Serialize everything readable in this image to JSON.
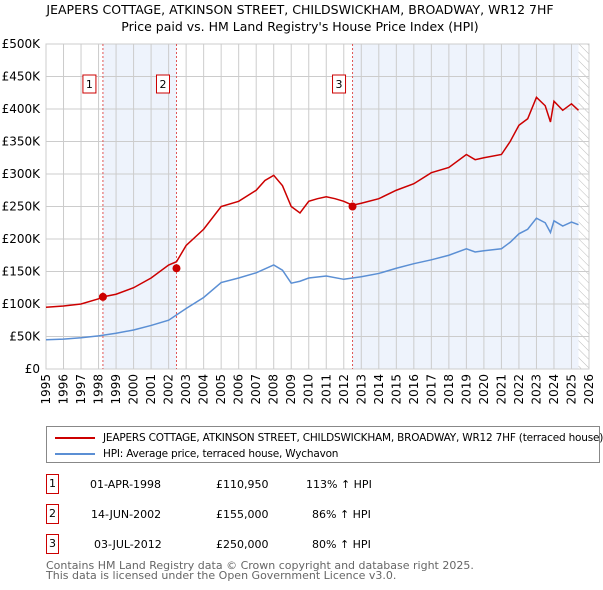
{
  "chart_data": {
    "type": "line",
    "title": "JEAPERS COTTAGE, ATKINSON STREET, CHILDSWICKHAM, BROADWAY, WR12 7HF",
    "subtitle": "Price paid vs. HM Land Registry's House Price Index (HPI)",
    "xlim": [
      1995,
      2026
    ],
    "ylim": [
      0,
      500000
    ],
    "x_ticks": [
      "1995",
      "1996",
      "1997",
      "1998",
      "1999",
      "2000",
      "2001",
      "2002",
      "2003",
      "2004",
      "2005",
      "2006",
      "2007",
      "2008",
      "2009",
      "2010",
      "2011",
      "2012",
      "2013",
      "2014",
      "2015",
      "2016",
      "2017",
      "2018",
      "2019",
      "2020",
      "2021",
      "2022",
      "2023",
      "2024",
      "2025",
      "2026"
    ],
    "y_ticks": [
      {
        "v": 0,
        "l": "£0"
      },
      {
        "v": 50000,
        "l": "£50K"
      },
      {
        "v": 100000,
        "l": "£100K"
      },
      {
        "v": 150000,
        "l": "£150K"
      },
      {
        "v": 200000,
        "l": "£200K"
      },
      {
        "v": 250000,
        "l": "£250K"
      },
      {
        "v": 300000,
        "l": "£300K"
      },
      {
        "v": 350000,
        "l": "£350K"
      },
      {
        "v": 400000,
        "l": "£400K"
      },
      {
        "v": 450000,
        "l": "£450K"
      },
      {
        "v": 500000,
        "l": "£500K"
      }
    ],
    "grid": true,
    "shaded_ranges": [
      [
        1998.25,
        2002.45
      ],
      [
        2012.5,
        2025.4
      ]
    ],
    "hatched_from": 2025.4,
    "series": [
      {
        "name": "JEAPERS COTTAGE, ATKINSON STREET, CHILDSWICKHAM, BROADWAY, WR12 7HF (terraced house)",
        "color": "#cc0000",
        "x": [
          1995,
          1996,
          1997,
          1998,
          1998.25,
          1999,
          2000,
          2001,
          2002,
          2002.45,
          2003,
          2004,
          2005,
          2006,
          2007,
          2007.5,
          2008,
          2008.5,
          2009,
          2009.5,
          2010,
          2010.5,
          2011,
          2011.5,
          2012,
          2012.5,
          2013,
          2014,
          2015,
          2016,
          2017,
          2018,
          2019,
          2019.5,
          2020,
          2021,
          2021.5,
          2022,
          2022.5,
          2023,
          2023.5,
          2023.8,
          2024,
          2024.5,
          2025,
          2025.4
        ],
        "y": [
          95000,
          97000,
          100000,
          108000,
          111000,
          115000,
          125000,
          140000,
          160000,
          165000,
          190000,
          215000,
          250000,
          258000,
          275000,
          290000,
          298000,
          282000,
          250000,
          240000,
          258000,
          262000,
          265000,
          262000,
          258000,
          252000,
          255000,
          262000,
          275000,
          285000,
          302000,
          310000,
          330000,
          322000,
          325000,
          330000,
          350000,
          375000,
          385000,
          418000,
          405000,
          380000,
          412000,
          398000,
          408000,
          398000
        ]
      },
      {
        "name": "HPI: Average price, terraced house, Wychavon",
        "color": "#5b8fd4",
        "x": [
          1995,
          1996,
          1997,
          1998,
          1999,
          2000,
          2001,
          2002,
          2003,
          2004,
          2005,
          2006,
          2007,
          2008,
          2008.5,
          2009,
          2009.5,
          2010,
          2011,
          2012,
          2013,
          2014,
          2015,
          2016,
          2017,
          2018,
          2019,
          2019.5,
          2020,
          2021,
          2021.5,
          2022,
          2022.5,
          2023,
          2023.5,
          2023.8,
          2024,
          2024.5,
          2025,
          2025.4
        ],
        "y": [
          45000,
          46000,
          48000,
          51000,
          55000,
          60000,
          67000,
          75000,
          93000,
          110000,
          133000,
          140000,
          148000,
          160000,
          152000,
          132000,
          135000,
          140000,
          143000,
          138000,
          142000,
          147000,
          155000,
          162000,
          168000,
          175000,
          185000,
          180000,
          182000,
          185000,
          195000,
          208000,
          215000,
          232000,
          225000,
          210000,
          228000,
          220000,
          226000,
          222000
        ]
      }
    ],
    "sales": [
      {
        "n": "1",
        "x": 1998.25,
        "y": 110950
      },
      {
        "n": "2",
        "x": 2002.45,
        "y": 155000
      },
      {
        "n": "3",
        "x": 2012.5,
        "y": 250000
      }
    ]
  },
  "title": "JEAPERS COTTAGE, ATKINSON STREET, CHILDSWICKHAM, BROADWAY, WR12 7HF",
  "subtitle": "Price paid vs. HM Land Registry's House Price Index (HPI)",
  "legend": {
    "red": "JEAPERS COTTAGE, ATKINSON STREET, CHILDSWICKHAM, BROADWAY, WR12 7HF (terraced house)",
    "blue": "HPI: Average price, terraced house, Wychavon"
  },
  "table": [
    {
      "n": "1",
      "date": "01-APR-1998",
      "price": "£110,950",
      "hpi": "113% ↑ HPI"
    },
    {
      "n": "2",
      "date": "14-JUN-2002",
      "price": "£155,000",
      "hpi": "86% ↑ HPI"
    },
    {
      "n": "3",
      "date": "03-JUL-2012",
      "price": "£250,000",
      "hpi": "80% ↑ HPI"
    }
  ],
  "footer": [
    "Contains HM Land Registry data © Crown copyright and database right 2025.",
    "This data is licensed under the Open Government Licence v3.0."
  ]
}
